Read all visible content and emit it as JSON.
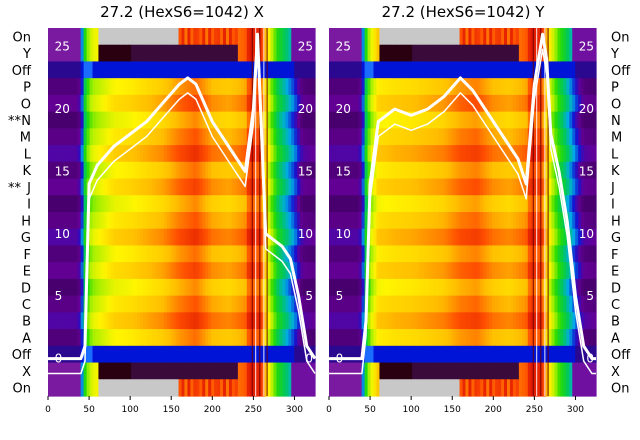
{
  "chart_data": [
    {
      "type": "heatmap",
      "title": "27.2 (HexS6=1042) X",
      "row_labels": [
        "On",
        "Y",
        "Off",
        "P",
        "O",
        "N",
        "M",
        "L",
        "K",
        "J",
        "I",
        "H",
        "G",
        "F",
        "E",
        "D",
        "C",
        "B",
        "A",
        "Off",
        "X",
        "On"
      ],
      "row_marks": {
        "N": "**",
        "J": "**"
      },
      "x_ticks": [
        0,
        50,
        100,
        150,
        200,
        250,
        300
      ],
      "xlim": [
        0,
        325
      ],
      "overlay_ticks": [
        0,
        5,
        10,
        15,
        20,
        25
      ],
      "overlay_ylim": [
        -3,
        26.5
      ],
      "overlay_series": {
        "x": [
          0,
          40,
          45,
          50,
          60,
          80,
          100,
          120,
          140,
          160,
          170,
          180,
          200,
          220,
          240,
          250,
          255,
          260,
          265,
          275,
          285,
          295,
          305,
          315,
          325
        ],
        "y": [
          0,
          0,
          1,
          14,
          15.5,
          17,
          18,
          19,
          20.5,
          22,
          22.5,
          22,
          19,
          17,
          15,
          20,
          26,
          18,
          10,
          9.5,
          9,
          8,
          5,
          1,
          0
        ]
      },
      "column_profile_x": [
        0,
        35,
        40,
        45,
        50,
        55,
        60,
        80,
        100,
        120,
        140,
        160,
        180,
        200,
        220,
        240,
        245,
        260,
        270,
        280,
        290,
        300,
        310,
        325
      ],
      "column_profile_v": [
        0.05,
        0.05,
        0.1,
        0.4,
        0.55,
        0.6,
        0.62,
        0.7,
        0.72,
        0.75,
        0.78,
        0.84,
        0.88,
        0.8,
        0.78,
        0.82,
        0.92,
        0.88,
        0.6,
        0.4,
        0.3,
        0.2,
        0.05,
        0.03
      ]
    },
    {
      "type": "heatmap",
      "title": "27.2 (HexS6=1042) Y",
      "row_labels": [
        "On",
        "Y",
        "Off",
        "P",
        "O",
        "N",
        "M",
        "L",
        "K",
        "J",
        "I",
        "H",
        "G",
        "F",
        "E",
        "D",
        "C",
        "B",
        "A",
        "Off",
        "X",
        "On"
      ],
      "row_marks": {},
      "x_ticks": [
        0,
        50,
        100,
        150,
        200,
        250,
        300
      ],
      "xlim": [
        0,
        325
      ],
      "overlay_ticks": [
        0,
        5,
        10,
        15,
        20,
        25
      ],
      "overlay_ylim": [
        -3,
        26.5
      ],
      "overlay_series": {
        "x": [
          0,
          40,
          45,
          50,
          60,
          80,
          100,
          120,
          140,
          160,
          175,
          190,
          210,
          230,
          240,
          250,
          260,
          265,
          270,
          280,
          290,
          300,
          310,
          320,
          325
        ],
        "y": [
          0,
          0,
          3,
          14,
          19,
          20,
          19.5,
          20,
          21,
          22.5,
          21.5,
          20,
          18,
          16,
          14,
          22,
          26,
          24,
          18,
          15,
          11,
          5,
          1,
          0,
          0
        ]
      },
      "column_profile_x": [
        0,
        35,
        40,
        45,
        50,
        55,
        60,
        80,
        100,
        120,
        140,
        160,
        180,
        200,
        220,
        240,
        245,
        260,
        270,
        280,
        290,
        300,
        310,
        325
      ],
      "column_profile_v": [
        0.05,
        0.05,
        0.1,
        0.4,
        0.58,
        0.65,
        0.72,
        0.74,
        0.75,
        0.77,
        0.79,
        0.84,
        0.86,
        0.8,
        0.78,
        0.82,
        0.92,
        0.88,
        0.62,
        0.45,
        0.32,
        0.18,
        0.05,
        0.03
      ]
    }
  ]
}
